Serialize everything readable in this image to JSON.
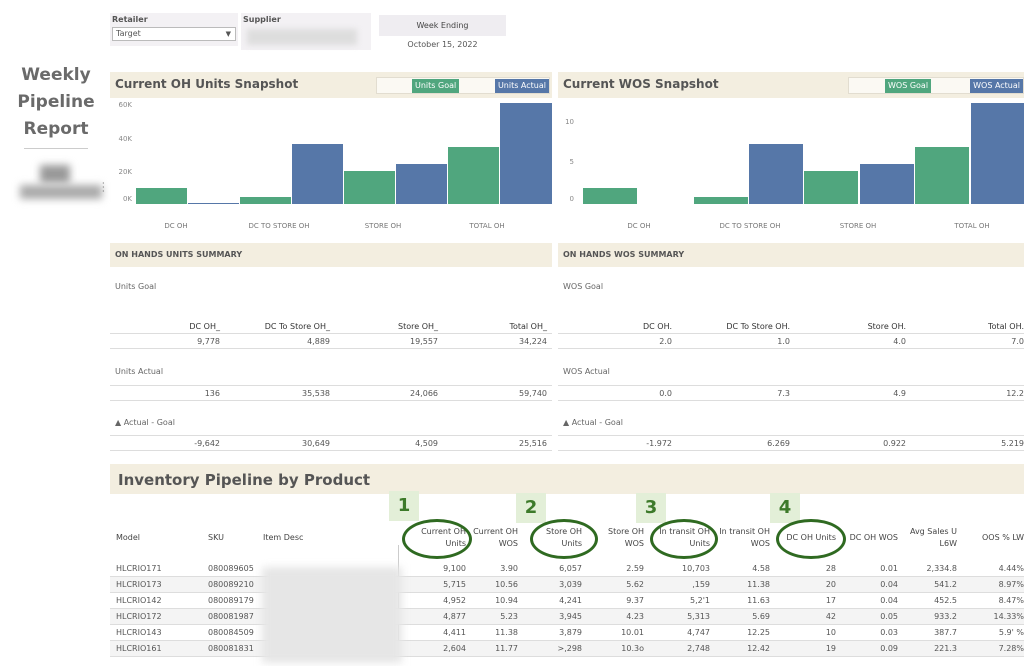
{
  "sidebar": {
    "report_title": "Weekly Pipeline Report"
  },
  "filters": {
    "retailer": {
      "label": "Retailer",
      "value": "Target"
    },
    "supplier": {
      "label": "Supplier"
    },
    "week_ending": {
      "label": "Week Ending",
      "value": "October 15, 2022"
    }
  },
  "colors": {
    "goal": "#50a67e",
    "actual": "#5677a8",
    "panel_bg": "#f3eee0",
    "annotation": "#2f6a21"
  },
  "units_snapshot": {
    "title": "Current OH Units Snapshot",
    "legend_goal": "Units Goal",
    "legend_actual": "Units Actual",
    "yticks": [
      "60K",
      "40K",
      "20K",
      "0K"
    ],
    "categories": [
      "DC OH",
      "DC TO STORE OH",
      "STORE OH",
      "TOTAL OH"
    ]
  },
  "wos_snapshot": {
    "title": "Current WOS Snapshot",
    "legend_goal": "WOS Goal",
    "legend_actual": "WOS Actual",
    "yticks": [
      "10",
      "5",
      "0"
    ],
    "categories": [
      "DC OH",
      "DC TO STORE OH",
      "STORE OH",
      "TOTAL OH"
    ]
  },
  "units_summary": {
    "title": "ON HANDS UNITS SUMMARY",
    "goal_label": "Units Goal",
    "actual_label": "Units Actual",
    "diff_label": "▲ Actual - Goal",
    "columns": [
      "DC OH_",
      "DC To Store OH_",
      "Store OH_",
      "Total OH_"
    ],
    "goal": [
      "9,778",
      "4,889",
      "19,557",
      "34,224"
    ],
    "actual": [
      "136",
      "35,538",
      "24,066",
      "59,740"
    ],
    "diff": [
      "-9,642",
      "30,649",
      "4,509",
      "25,516"
    ]
  },
  "wos_summary": {
    "title": "ON HANDS WOS SUMMARY",
    "goal_label": "WOS Goal",
    "actual_label": "WOS Actual",
    "diff_label": "▲ Actual - Goal",
    "columns": [
      "DC OH.",
      "DC To Store OH.",
      "Store OH.",
      "Total OH."
    ],
    "goal": [
      "2.0",
      "1.0",
      "4.0",
      "7.0"
    ],
    "actual": [
      "0.0",
      "7.3",
      "4.9",
      "12.2"
    ],
    "diff": [
      "-1.972",
      "6.269",
      "0.922",
      "5.219"
    ]
  },
  "pipeline": {
    "title": "Inventory Pipeline by Product",
    "columns": [
      "Model",
      "SKU",
      "Item Desc",
      "Current OH Units",
      "Current OH WOS",
      "Store OH Units",
      "Store OH WOS",
      "In transit OH Units",
      "In transit OH WOS",
      "DC OH Units",
      "DC OH WOS",
      "Avg Sales U L6W",
      "OOS % LW"
    ],
    "rows": [
      [
        "HLCRIO171",
        "080089605",
        "",
        "9,100",
        "3.90",
        "6,057",
        "2.59",
        "10,703",
        "4.58",
        "28",
        "0.01",
        "2,334.8",
        "4.44%"
      ],
      [
        "HLCRIO173",
        "080089210",
        "",
        "5,715",
        "10.56",
        "3,039",
        "5.62",
        ",159",
        "11.38",
        "20",
        "0.04",
        "541.2",
        "8.97%"
      ],
      [
        "HLCRIO142",
        "080089179",
        "",
        "4,952",
        "10.94",
        "4,241",
        "9.37",
        "5,2'1",
        "11.63",
        "17",
        "0.04",
        "452.5",
        "8.47%"
      ],
      [
        "HLCRIO172",
        "080081987",
        "",
        "4,877",
        "5.23",
        "3,945",
        "4.23",
        "5,313",
        "5.69",
        "42",
        "0.05",
        "933.2",
        "14.33%"
      ],
      [
        "HLCRIO143",
        "080084509",
        "",
        "4,411",
        "11.38",
        "3,879",
        "10.01",
        "4,747",
        "12.25",
        "10",
        "0.03",
        "387.7",
        "5.9' %"
      ],
      [
        "HLCRIO161",
        "080081831",
        "",
        "2,604",
        "11.77",
        ">,298",
        "10.3o",
        "2,748",
        "12.42",
        "19",
        "0.09",
        "221.3",
        "7.28%"
      ]
    ]
  },
  "annotations": [
    "1",
    "2",
    "3",
    "4"
  ],
  "chart_data": [
    {
      "type": "bar",
      "title": "Current OH Units Snapshot",
      "categories": [
        "DC OH",
        "DC TO STORE OH",
        "STORE OH",
        "TOTAL OH"
      ],
      "series": [
        {
          "name": "Units Goal",
          "values": [
            9778,
            4889,
            19557,
            34224
          ]
        },
        {
          "name": "Units Actual",
          "values": [
            136,
            35538,
            24066,
            59740
          ]
        }
      ],
      "ylim": [
        0,
        62000
      ],
      "yticks": [
        "0K",
        "20K",
        "40K",
        "60K"
      ],
      "legend_position": "top-right"
    },
    {
      "type": "bar",
      "title": "Current WOS Snapshot",
      "categories": [
        "DC OH",
        "DC TO STORE OH",
        "STORE OH",
        "TOTAL OH"
      ],
      "series": [
        {
          "name": "WOS Goal",
          "values": [
            2.0,
            1.0,
            4.0,
            7.0
          ]
        },
        {
          "name": "WOS Actual",
          "values": [
            0.0,
            7.3,
            4.9,
            12.2
          ]
        }
      ],
      "ylim": [
        0,
        12.5
      ],
      "yticks": [
        "0",
        "5",
        "10"
      ],
      "legend_position": "top-right"
    }
  ]
}
